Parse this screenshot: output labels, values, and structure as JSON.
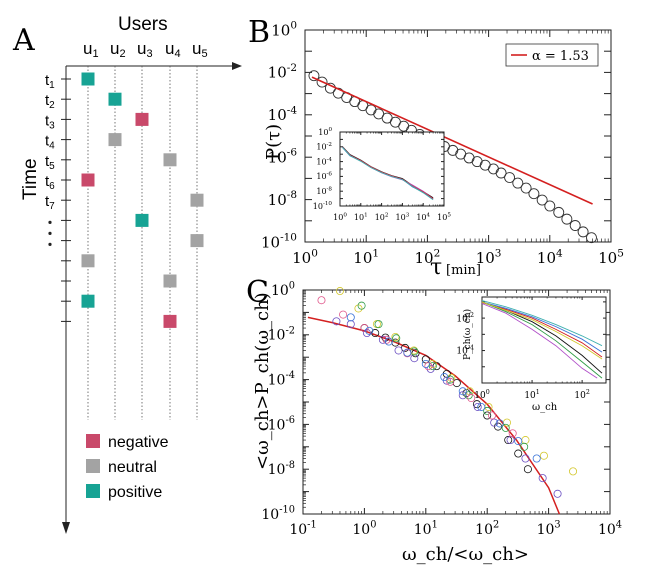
{
  "panel_letters": {
    "a": "A",
    "b": "B",
    "c": "C"
  },
  "panel_a": {
    "users_title": "Users",
    "time_label": "Time",
    "users": [
      "u",
      "u",
      "u",
      "u",
      "u"
    ],
    "user_subscripts": [
      "1",
      "2",
      "3",
      "4",
      "5"
    ],
    "times": [
      "t",
      "t",
      "t",
      "t",
      "t",
      "t",
      "t"
    ],
    "time_subscripts": [
      "1",
      "2",
      "3",
      "4",
      "5",
      "6",
      "7"
    ],
    "ellipsis": "·\n·\n·",
    "events": [
      {
        "user": 1,
        "row": 1,
        "kind": "positive"
      },
      {
        "user": 2,
        "row": 2,
        "kind": "positive"
      },
      {
        "user": 3,
        "row": 3,
        "kind": "negative"
      },
      {
        "user": 2,
        "row": 4,
        "kind": "neutral"
      },
      {
        "user": 4,
        "row": 5,
        "kind": "neutral"
      },
      {
        "user": 1,
        "row": 6,
        "kind": "negative"
      },
      {
        "user": 5,
        "row": 7,
        "kind": "neutral"
      },
      {
        "user": 3,
        "row": 8,
        "kind": "positive"
      },
      {
        "user": 5,
        "row": 9,
        "kind": "neutral"
      },
      {
        "user": 1,
        "row": 10,
        "kind": "neutral"
      },
      {
        "user": 4,
        "row": 11,
        "kind": "neutral"
      },
      {
        "user": 1,
        "row": 12,
        "kind": "positive"
      },
      {
        "user": 4,
        "row": 13,
        "kind": "negative"
      }
    ],
    "legend": [
      {
        "kind": "negative",
        "label": "negative"
      },
      {
        "kind": "neutral",
        "label": "neutral"
      },
      {
        "kind": "positive",
        "label": "positive"
      }
    ],
    "colors": {
      "negative": "#c9496a",
      "neutral": "#a3a3a3",
      "positive": "#17a394"
    }
  },
  "chart_data": [
    {
      "type": "scatter",
      "panel": "B",
      "xscale": "log",
      "yscale": "log",
      "xlim": [
        1,
        100000
      ],
      "ylim": [
        1e-10,
        1
      ],
      "xticks": [
        "10^0",
        "10^1",
        "10^2",
        "10^3",
        "10^4",
        "10^5"
      ],
      "yticks": [
        "10^0",
        "10^-2",
        "10^-4",
        "10^-6",
        "10^-8",
        "10^-10"
      ],
      "xlabel": "τ",
      "xlabel_unit": "[min]",
      "ylabel": "P(τ)",
      "legend": {
        "label": "α =  1.53",
        "color": "#d42020",
        "position": "top-right"
      },
      "series": [
        {
          "kind": "circles",
          "x": [
            1.4,
            1.9,
            2.6,
            3.5,
            4.8,
            6.5,
            8.8,
            12,
            16,
            22,
            30,
            41,
            55,
            75,
            100,
            140,
            190,
            260,
            350,
            480,
            650,
            880,
            1200,
            1600,
            2200,
            3000,
            4100,
            5500,
            7500,
            10000,
            14000,
            19000,
            26000,
            35000,
            48000
          ],
          "y": [
            0.007,
            0.0035,
            0.0018,
            0.00105,
            0.00065,
            0.00042,
            0.00027,
            0.00017,
            0.00011,
            7e-05,
            4.5e-05,
            2.9e-05,
            1.85e-05,
            1.18e-05,
            7.6e-06,
            4.9e-06,
            3.2e-06,
            2.1e-06,
            1.4e-06,
            9.2e-07,
            6.2e-07,
            4.2e-07,
            2.8e-07,
            1.8e-07,
            1.1e-07,
            6e-08,
            3.5e-08,
            1.9e-08,
            9.5e-09,
            5e-09,
            2.5e-09,
            1.2e-09,
            6e-10,
            3e-10,
            1.6e-10
          ]
        },
        {
          "kind": "fit",
          "color": "#d42020",
          "x": [
            1.3,
            50000
          ],
          "y": [
            0.006,
            6.2e-09
          ]
        }
      ],
      "inset": {
        "xlim": [
          1,
          100000
        ],
        "ylim": [
          1e-10,
          1
        ],
        "xticks": [
          "10^0",
          "10^1",
          "10^2",
          "10^3",
          "10^4",
          "10^5"
        ],
        "yticks": [
          "10^0",
          "10^-2",
          "10^-4",
          "10^-6",
          "10^-8",
          "10^-10"
        ],
        "lines": [
          {
            "color": "#1d9a3a",
            "x": [
              1.3,
              3,
              10,
              30,
              100,
              300,
              1000,
              3000,
              10000,
              30000
            ],
            "y": [
              0.01,
              0.0008,
              0.00015,
              2e-05,
              4e-06,
              1.2e-06,
              4.5e-07,
              5e-08,
              8e-09,
              1.1e-09
            ]
          },
          {
            "color": "#2255cc",
            "x": [
              1.3,
              3,
              10,
              30,
              100,
              300,
              1000,
              3000,
              10000,
              30000
            ],
            "y": [
              0.008,
              0.0006,
              0.00012,
              1.8e-05,
              3.5e-06,
              1.1e-06,
              4e-07,
              4e-08,
              7e-09,
              8e-10
            ]
          },
          {
            "color": "#111111",
            "x": [
              1.3,
              3,
              10,
              30,
              100,
              300,
              1000,
              3000,
              10000,
              30000
            ],
            "y": [
              0.011,
              0.0009,
              0.00016,
              2.2e-05,
              4.2e-06,
              1.3e-06,
              5e-07,
              6e-08,
              9e-09,
              1.3e-09
            ]
          },
          {
            "color": "#b04fc8",
            "x": [
              1.3,
              3,
              10,
              30,
              100,
              300,
              1000,
              3000,
              10000,
              30000
            ],
            "y": [
              0.009,
              0.0007,
              0.00013,
              1.7e-05,
              3e-06,
              9e-07,
              3.5e-07,
              7e-08,
              1e-08,
              9e-10
            ]
          },
          {
            "color": "#d9364d",
            "x": [
              1.3,
              3,
              10,
              30,
              100,
              300,
              1000,
              3000,
              10000,
              30000
            ],
            "y": [
              0.0095,
              0.00075,
              0.00014,
              2e-05,
              3.8e-06,
              1.2e-06,
              4.2e-07,
              5.5e-08,
              8.5e-09,
              1e-09
            ]
          },
          {
            "color": "#3fb0b0",
            "x": [
              1.3,
              3,
              10,
              30,
              100,
              300,
              1000,
              3000,
              10000,
              30000
            ],
            "y": [
              0.0085,
              0.00065,
              0.00011,
              1.6e-05,
              3.2e-06,
              1e-06,
              3.8e-07,
              4.5e-08,
              6e-09,
              7e-10
            ]
          }
        ]
      }
    },
    {
      "type": "scatter",
      "panel": "C",
      "xscale": "log",
      "yscale": "log",
      "xlim": [
        0.1,
        10000
      ],
      "ylim": [
        1e-10,
        1
      ],
      "xticks": [
        "10^-1",
        "10^0",
        "10^1",
        "10^2",
        "10^3",
        "10^4"
      ],
      "yticks": [
        "10^0",
        "10^-2",
        "10^-4",
        "10^-6",
        "10^-8",
        "10^-10"
      ],
      "xlabel": "ω_ch/<ω_ch>",
      "ylabel": "<ω_ch>P_ch(ω_ch)",
      "series": [
        {
          "kind": "fit",
          "color": "#d42020",
          "x": [
            0.12,
            0.3,
            1,
            3,
            10,
            30,
            100,
            300,
            1000,
            1500
          ],
          "y": [
            0.06,
            0.035,
            0.015,
            0.005,
            0.0012,
            0.00015,
            8e-06,
            2e-07,
            1.5e-09,
            1e-10
          ]
        },
        {
          "kind": "circles",
          "color": "#111111",
          "x": [
            1,
            1.5,
            2.2,
            3.2,
            4.6,
            6.8,
            10,
            15,
            22,
            32,
            46,
            68,
            100,
            150,
            220,
            320,
            460
          ],
          "y": [
            0.02,
            0.012,
            0.0075,
            0.0045,
            0.0026,
            0.0015,
            0.0008,
            0.0004,
            0.00018,
            7e-05,
            2.5e-05,
            8e-06,
            2.5e-06,
            8e-07,
            2e-07,
            5e-08,
            1e-08
          ]
        },
        {
          "kind": "circles",
          "color": "#6b4fc2",
          "x": [
            0.35,
            0.6,
            1.1,
            2,
            3.6,
            6.5,
            12,
            22,
            40,
            70,
            130,
            240,
            420,
            800,
            1400
          ],
          "y": [
            0.04,
            0.03,
            0.012,
            0.006,
            0.002,
            0.0009,
            0.0003,
            9e-05,
            2e-05,
            6e-06,
            1.2e-06,
            2e-07,
            3e-08,
            4e-09,
            8e-10
          ]
        },
        {
          "kind": "circles",
          "color": "#d3c72c",
          "x": [
            0.4,
            0.8,
            1.6,
            3.2,
            6.4,
            13,
            26,
            52,
            105,
            210,
            420,
            840,
            2500
          ],
          "y": [
            0.9,
            0.15,
            0.03,
            0.008,
            0.002,
            0.0005,
            0.00012,
            3e-05,
            6e-06,
            1.2e-06,
            2e-07,
            4e-08,
            8e-09
          ]
        },
        {
          "kind": "circles",
          "color": "#2f9c46",
          "x": [
            0.9,
            1.7,
            3.3,
            6.5,
            13,
            25,
            50,
            100,
            200,
            400
          ],
          "y": [
            0.2,
            0.03,
            0.007,
            0.0018,
            0.0004,
            0.0001,
            2e-05,
            4e-06,
            7e-07,
            1e-07
          ]
        },
        {
          "kind": "circles",
          "color": "#e0568a",
          "x": [
            0.2,
            0.45,
            1,
            2.3,
            5,
            11,
            25,
            55,
            120,
            260
          ],
          "y": [
            0.35,
            0.08,
            0.02,
            0.006,
            0.0015,
            0.0004,
            8e-05,
            1.5e-05,
            2.5e-06,
            4e-07
          ]
        },
        {
          "kind": "circles",
          "color": "#3a73d8",
          "x": [
            0.6,
            1.2,
            2.5,
            5,
            10,
            20,
            40,
            80,
            160,
            320,
            640
          ],
          "y": [
            0.06,
            0.015,
            0.005,
            0.0016,
            0.0005,
            0.00013,
            3e-05,
            6e-06,
            1.1e-06,
            1.8e-07,
            3e-08
          ]
        }
      ],
      "inset": {
        "xlim": [
          1,
          300
        ],
        "ylim": [
          1e-06,
          0.2
        ],
        "xticks": [
          "10^0",
          "10^1",
          "10^2"
        ],
        "yticks": [
          "10^-2",
          "10^-4"
        ],
        "xlabel": "ω_ch",
        "ylabel": "P_ch(ω_ch)",
        "lines": [
          {
            "color": "#111111",
            "x": [
              1,
              3,
              10,
              30,
              100,
              250
            ],
            "y": [
              0.1,
              0.03,
              0.006,
              0.0008,
              5e-05,
              4e-06
            ]
          },
          {
            "color": "#d42020",
            "x": [
              1,
              3,
              10,
              30,
              100,
              250
            ],
            "y": [
              0.09,
              0.035,
              0.01,
              0.002,
              0.0003,
              4e-05
            ]
          },
          {
            "color": "#3a73d8",
            "x": [
              1,
              3,
              10,
              30,
              100,
              250
            ],
            "y": [
              0.1,
              0.04,
              0.012,
              0.003,
              0.0005,
              8e-05
            ]
          },
          {
            "color": "#2f9c46",
            "x": [
              1,
              3,
              10,
              30,
              100,
              250
            ],
            "y": [
              0.1,
              0.025,
              0.004,
              0.0004,
              2e-05,
              2e-06
            ]
          },
          {
            "color": "#b04fc8",
            "x": [
              1,
              3,
              10,
              30,
              100,
              200
            ],
            "y": [
              0.08,
              0.02,
              0.002,
              0.0002,
              8e-06,
              2e-06
            ]
          },
          {
            "color": "#3fb0b0",
            "x": [
              1,
              3,
              10,
              30,
              100,
              250
            ],
            "y": [
              0.12,
              0.05,
              0.015,
              0.004,
              0.0008,
              0.0002
            ]
          },
          {
            "color": "#d3c72c",
            "x": [
              1,
              3,
              10,
              30,
              100,
              250
            ],
            "y": [
              0.1,
              0.03,
              0.008,
              0.0015,
              0.0002,
              3e-05
            ]
          }
        ]
      }
    }
  ]
}
